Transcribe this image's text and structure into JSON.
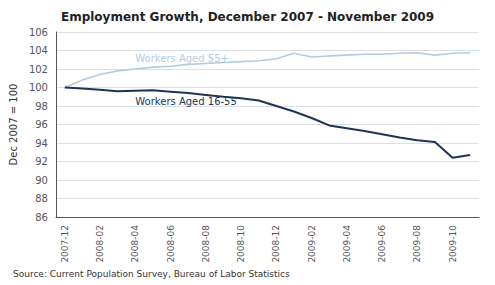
{
  "chart_data": {
    "type": "line",
    "title": "Employment Growth, December 2007 - November 2009",
    "ylabel": "Dec 2007 = 100",
    "source": "Source: Current Population Survey, Bureau of Labor Statistics",
    "categories": [
      "2007-12",
      null,
      "2008-02",
      null,
      "2008-04",
      null,
      "2008-06",
      null,
      "2008-08",
      null,
      "2008-10",
      null,
      "2008-12",
      null,
      "2009-02",
      null,
      "2009-04",
      null,
      "2009-06",
      null,
      "2009-08",
      null,
      "2009-10",
      null
    ],
    "series": [
      {
        "name": "Workers Aged 55+",
        "color": "#b0cce4",
        "values": [
          100.0,
          100.8,
          101.4,
          101.8,
          102.0,
          102.2,
          102.3,
          102.5,
          102.6,
          102.7,
          102.8,
          102.9,
          103.1,
          103.7,
          103.3,
          103.4,
          103.5,
          103.6,
          103.6,
          103.7,
          103.75,
          103.5,
          103.7,
          103.75
        ]
      },
      {
        "name": "Workers Aged 16-55",
        "color": "#1c3557",
        "values": [
          100.0,
          99.9,
          99.75,
          99.6,
          99.65,
          99.7,
          99.55,
          99.4,
          99.2,
          99.0,
          98.85,
          98.6,
          98.0,
          97.4,
          96.7,
          95.9,
          95.6,
          95.3,
          94.95,
          94.6,
          94.3,
          94.1,
          92.4,
          92.7
        ]
      }
    ],
    "ylim": [
      86,
      106
    ],
    "yticks": [
      86,
      88,
      90,
      92,
      94,
      96,
      98,
      100,
      102,
      104,
      106
    ],
    "grid": true
  }
}
